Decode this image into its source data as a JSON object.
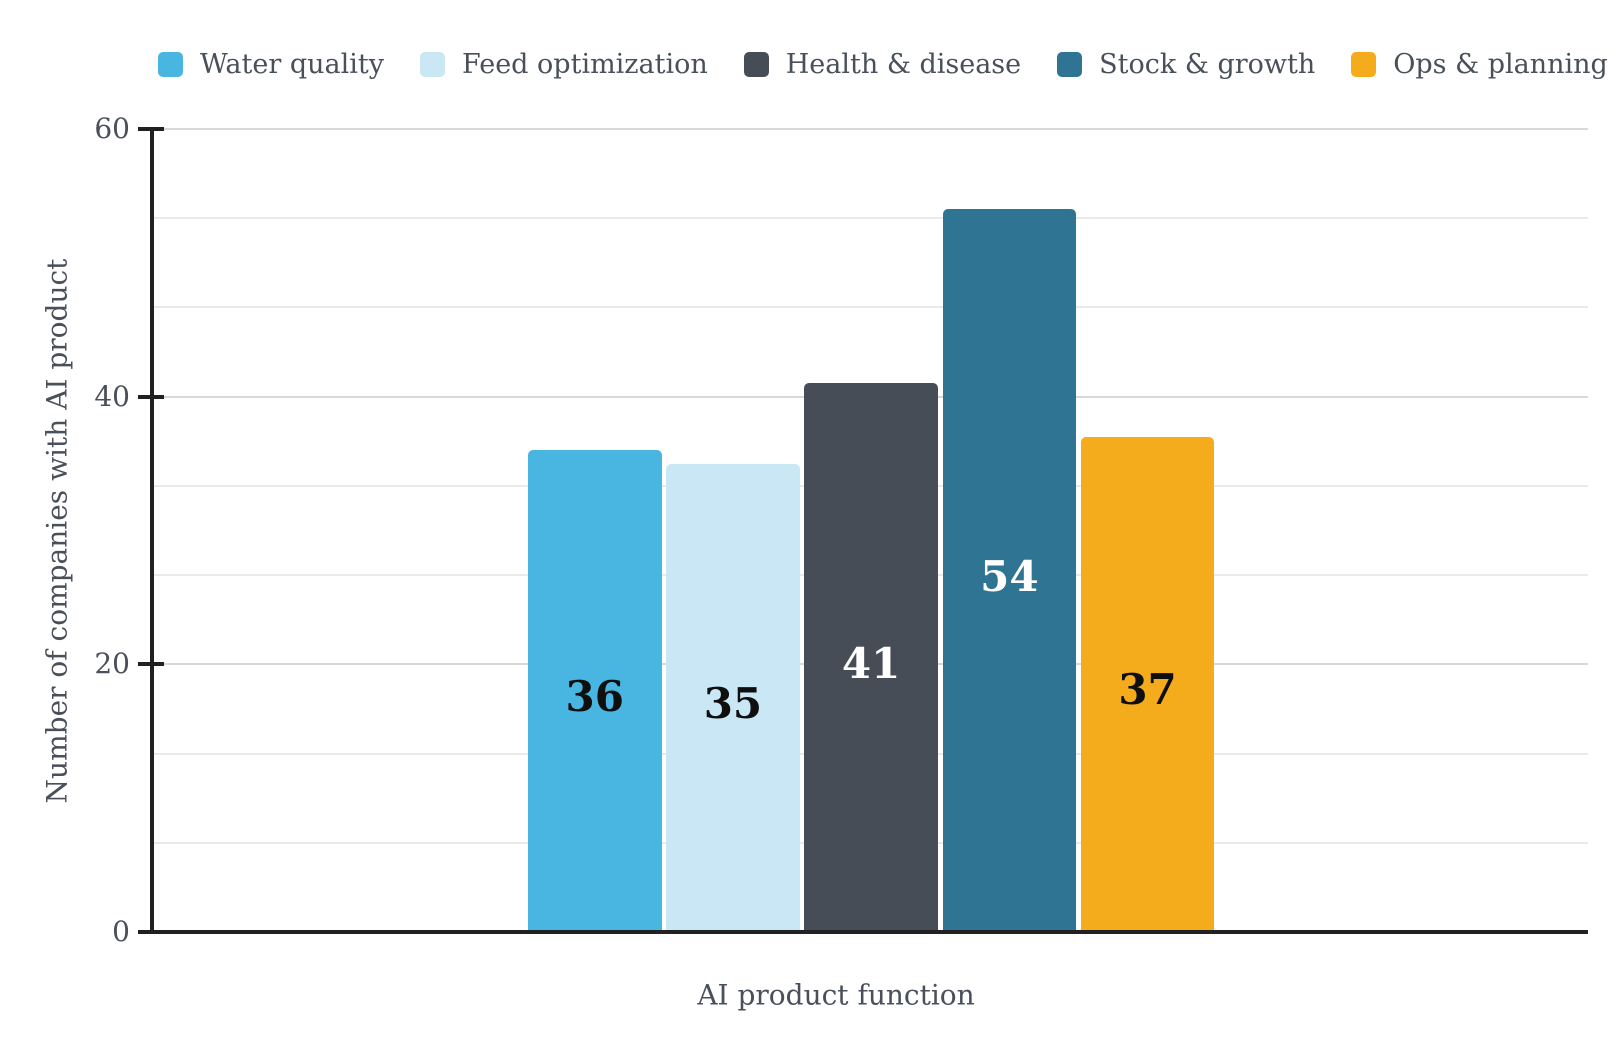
{
  "chart_data": {
    "type": "bar",
    "xlabel": "AI product function",
    "ylabel": "Number of companies with AI product",
    "categories": [
      "Water quality",
      "Feed optimization",
      "Health & disease",
      "Stock & growth",
      "Ops & planning"
    ],
    "values": [
      36,
      35,
      41,
      54,
      37
    ],
    "bar_colors": [
      "#49B6E1",
      "#CAE7F5",
      "#474D56",
      "#2F7492",
      "#F4AC1C"
    ],
    "value_label_colors": [
      "#0F0F0F",
      "#0F0F0F",
      "#FFFFFF",
      "#FFFFFF",
      "#0F0F0F"
    ],
    "ylim": [
      0,
      60
    ],
    "yticks": [
      0,
      20,
      40,
      60
    ],
    "major_gridlines": [
      20,
      40,
      60
    ],
    "minor_gridlines": [
      6.67,
      13.33,
      26.67,
      33.33,
      46.67,
      53.33
    ],
    "legend_position": "top",
    "grid": "on",
    "legend": [
      "Water quality",
      "Feed optimization",
      "Health & disease",
      "Stock & growth",
      "Ops & planning"
    ]
  },
  "colors": {
    "background": "#FFFFFF",
    "axis": "#212121",
    "text": "#49505A",
    "grid_minor": "#EAEAEA",
    "grid_major": "#D8D8D8"
  }
}
